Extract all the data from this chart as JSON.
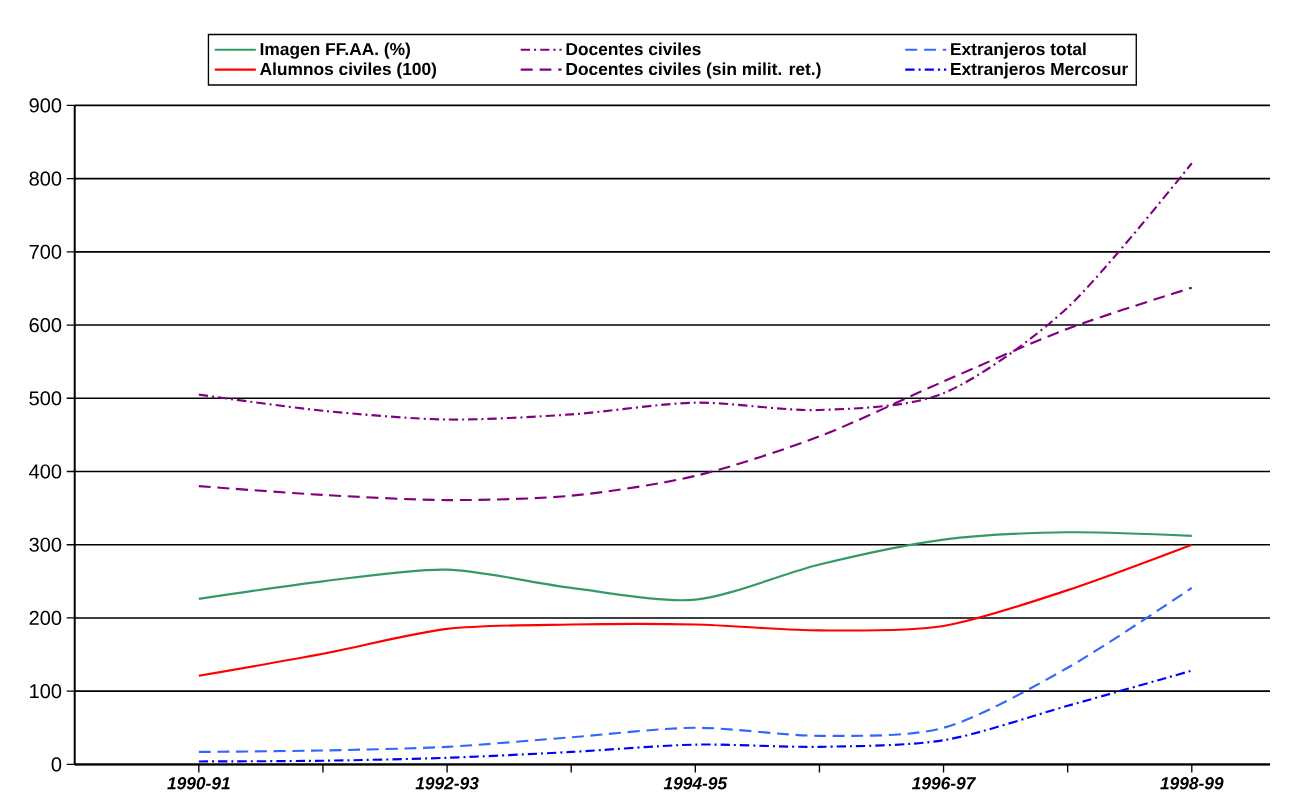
{
  "chart_data": {
    "type": "line",
    "categories": [
      "1990-91",
      null,
      "1992-93",
      null,
      "1994-95",
      null,
      "1996-97",
      null,
      "1998-99"
    ],
    "series": [
      {
        "name": "Imagen FF.AA. (%)",
        "color": "#339966",
        "line_style": "solid",
        "values": [
          226,
          250,
          266,
          241,
          225,
          273,
          307,
          317,
          312
        ]
      },
      {
        "name": "Docentes civiles",
        "color": "#800080",
        "line_style": "dashdot",
        "values": [
          505,
          483,
          471,
          478,
          494,
          484,
          507,
          624,
          821
        ]
      },
      {
        "name": "Extranjeros total",
        "color": "#3366ff",
        "line_style": "dashed",
        "values": [
          17,
          19,
          24,
          37,
          50,
          39,
          50,
          132,
          241
        ]
      },
      {
        "name": "Alumnos civiles (100)",
        "color": "#ff0000",
        "line_style": "solid",
        "values": [
          121,
          151,
          185,
          191,
          191,
          183,
          189,
          238,
          300
        ]
      },
      {
        "name": "Docentes civiles (sin milit. ret.)",
        "color": "#800080",
        "line_style": "dashed",
        "values": [
          380,
          368,
          361,
          367,
          394,
          448,
          523,
          595,
          651
        ]
      },
      {
        "name": "Extranjeros Mercosur",
        "color": "#0000ff",
        "line_style": "dashdot",
        "values": [
          4,
          5,
          9,
          17,
          27,
          24,
          33,
          80,
          128
        ]
      }
    ],
    "ylim": [
      0,
      900
    ],
    "yticks": [
      0,
      100,
      200,
      300,
      400,
      500,
      600,
      700,
      800,
      900
    ],
    "grid": "y",
    "legend": "top",
    "marker": "none"
  }
}
